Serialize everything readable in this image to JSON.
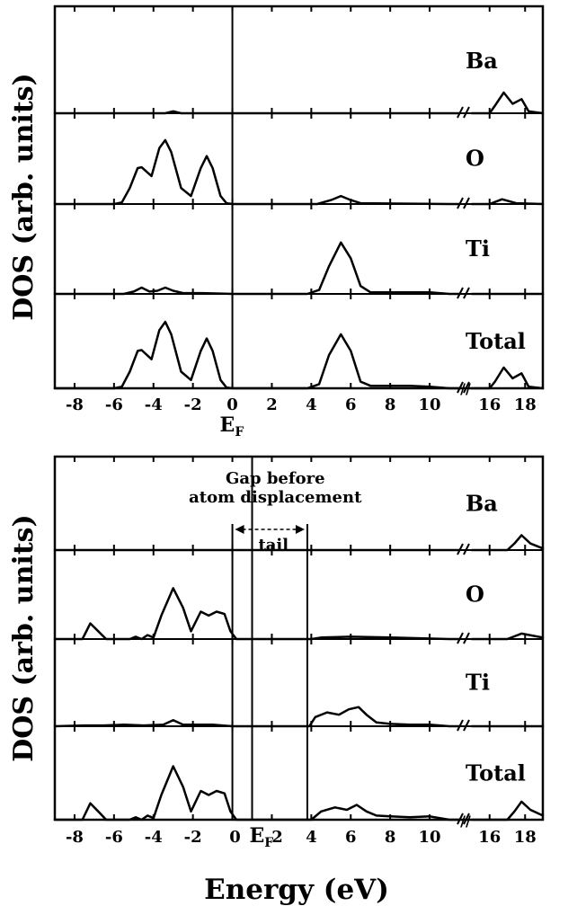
{
  "chart_data": [
    {
      "type": "line",
      "ylabel": "DOS (arb. units)",
      "xlabel": "",
      "fermi_label": "E",
      "fermi_sub": "F",
      "fermi_energy": 0,
      "x_ticks": [
        -8,
        -6,
        -4,
        -2,
        0,
        2,
        4,
        6,
        8,
        10,
        16,
        18
      ],
      "x_range_left": [
        -9,
        11.5
      ],
      "x_range_right": [
        15,
        19
      ],
      "axis_break": "//",
      "panels": [
        {
          "name": "Ba",
          "peak": 0.35,
          "points": [
            [
              -9,
              0
            ],
            [
              -3.4,
              0
            ],
            [
              -3,
              0.02
            ],
            [
              -2.6,
              0
            ],
            [
              16,
              0
            ],
            [
              16.3,
              0.08
            ],
            [
              16.8,
              0.22
            ],
            [
              17.3,
              0.1
            ],
            [
              17.8,
              0.15
            ],
            [
              18.2,
              0.02
            ],
            [
              19,
              0
            ]
          ]
        },
        {
          "name": "O",
          "peak": 1.0,
          "points": [
            [
              -9,
              0
            ],
            [
              -6,
              0
            ],
            [
              -5.6,
              0.02
            ],
            [
              -5.2,
              0.2
            ],
            [
              -4.8,
              0.45
            ],
            [
              -4.6,
              0.46
            ],
            [
              -4.1,
              0.35
            ],
            [
              -3.7,
              0.7
            ],
            [
              -3.4,
              0.8
            ],
            [
              -3.1,
              0.65
            ],
            [
              -2.6,
              0.2
            ],
            [
              -2.1,
              0.1
            ],
            [
              -1.6,
              0.45
            ],
            [
              -1.3,
              0.6
            ],
            [
              -1,
              0.45
            ],
            [
              -0.6,
              0.1
            ],
            [
              -0.3,
              0.01
            ],
            [
              0,
              0
            ],
            [
              4.3,
              0
            ],
            [
              5,
              0.05
            ],
            [
              5.5,
              0.1
            ],
            [
              6,
              0.05
            ],
            [
              6.5,
              0.01
            ],
            [
              11,
              0
            ],
            [
              16,
              0
            ],
            [
              16.7,
              0.06
            ],
            [
              17.5,
              0.01
            ],
            [
              19,
              0
            ]
          ]
        },
        {
          "name": "Ti",
          "peak": 0.75,
          "points": [
            [
              -9,
              0
            ],
            [
              -5.5,
              0
            ],
            [
              -5,
              0.03
            ],
            [
              -4.6,
              0.08
            ],
            [
              -4.2,
              0.03
            ],
            [
              -3.8,
              0.04
            ],
            [
              -3.4,
              0.08
            ],
            [
              -3,
              0.04
            ],
            [
              -2.5,
              0.01
            ],
            [
              -1.5,
              0.01
            ],
            [
              0,
              0
            ],
            [
              3.8,
              0
            ],
            [
              4.4,
              0.05
            ],
            [
              4.9,
              0.35
            ],
            [
              5.5,
              0.65
            ],
            [
              6,
              0.45
            ],
            [
              6.5,
              0.1
            ],
            [
              7,
              0.02
            ],
            [
              9,
              0.02
            ],
            [
              10,
              0.02
            ],
            [
              11,
              0
            ],
            [
              19,
              0
            ]
          ]
        },
        {
          "name": "Total",
          "peak": 1.0,
          "points": [
            [
              -9,
              0
            ],
            [
              -6,
              0
            ],
            [
              -5.6,
              0.02
            ],
            [
              -5.2,
              0.2
            ],
            [
              -4.8,
              0.45
            ],
            [
              -4.6,
              0.46
            ],
            [
              -4.1,
              0.35
            ],
            [
              -3.7,
              0.7
            ],
            [
              -3.4,
              0.8
            ],
            [
              -3.1,
              0.65
            ],
            [
              -2.6,
              0.2
            ],
            [
              -2.1,
              0.1
            ],
            [
              -1.6,
              0.45
            ],
            [
              -1.3,
              0.6
            ],
            [
              -1,
              0.45
            ],
            [
              -0.6,
              0.1
            ],
            [
              -0.3,
              0.01
            ],
            [
              0,
              0
            ],
            [
              3.8,
              0
            ],
            [
              4.4,
              0.05
            ],
            [
              4.9,
              0.4
            ],
            [
              5.5,
              0.65
            ],
            [
              6,
              0.45
            ],
            [
              6.5,
              0.08
            ],
            [
              7,
              0.03
            ],
            [
              9,
              0.03
            ],
            [
              10,
              0.02
            ],
            [
              11,
              0
            ],
            [
              16,
              0
            ],
            [
              16.3,
              0.08
            ],
            [
              16.8,
              0.25
            ],
            [
              17.3,
              0.12
            ],
            [
              17.8,
              0.18
            ],
            [
              18.2,
              0.02
            ],
            [
              19,
              0
            ]
          ]
        }
      ]
    },
    {
      "type": "line",
      "ylabel": "DOS (arb. units)",
      "xlabel": "Energy (eV)",
      "fermi_label": "E",
      "fermi_sub": "F",
      "fermi_energy": 1.0,
      "x_ticks": [
        -8,
        -6,
        -4,
        -2,
        0,
        2,
        4,
        6,
        8,
        10,
        16,
        18
      ],
      "x_range_left": [
        -9,
        11.5
      ],
      "x_range_right": [
        15,
        19
      ],
      "axis_break": "//",
      "annotation": {
        "line1": "Gap before",
        "line2": "atom displacement",
        "tail": "tail"
      },
      "gap_range": [
        0,
        3.8
      ],
      "panels": [
        {
          "name": "Ba",
          "peak": 0.35,
          "points": [
            [
              -9,
              0
            ],
            [
              17,
              0
            ],
            [
              17.4,
              0.08
            ],
            [
              17.8,
              0.18
            ],
            [
              18.3,
              0.08
            ],
            [
              19,
              0.02
            ]
          ]
        },
        {
          "name": "O",
          "peak": 1.0,
          "points": [
            [
              -9,
              0
            ],
            [
              -7.6,
              0
            ],
            [
              -7.2,
              0.2
            ],
            [
              -6.8,
              0.1
            ],
            [
              -6.4,
              0
            ],
            [
              -5.2,
              0
            ],
            [
              -4.9,
              0.03
            ],
            [
              -4.6,
              0
            ],
            [
              -4.3,
              0.05
            ],
            [
              -4,
              0.02
            ],
            [
              -3.6,
              0.3
            ],
            [
              -3,
              0.65
            ],
            [
              -2.5,
              0.4
            ],
            [
              -2.1,
              0.1
            ],
            [
              -1.6,
              0.35
            ],
            [
              -1.2,
              0.3
            ],
            [
              -0.8,
              0.35
            ],
            [
              -0.4,
              0.32
            ],
            [
              -0.1,
              0.1
            ],
            [
              0.2,
              0
            ],
            [
              4,
              0
            ],
            [
              4.5,
              0.02
            ],
            [
              6,
              0.03
            ],
            [
              8,
              0.02
            ],
            [
              11,
              0
            ],
            [
              17,
              0
            ],
            [
              17.8,
              0.07
            ],
            [
              18.5,
              0.04
            ],
            [
              19,
              0.02
            ]
          ]
        },
        {
          "name": "Ti",
          "peak": 0.75,
          "points": [
            [
              -9,
              0
            ],
            [
              -7.5,
              0.01
            ],
            [
              -6.5,
              0.01
            ],
            [
              -5.5,
              0.02
            ],
            [
              -4.5,
              0.01
            ],
            [
              -3.5,
              0.02
            ],
            [
              -3,
              0.08
            ],
            [
              -2.5,
              0.02
            ],
            [
              -1,
              0.02
            ],
            [
              0,
              0
            ],
            [
              3.9,
              0
            ],
            [
              4.2,
              0.12
            ],
            [
              4.8,
              0.18
            ],
            [
              5.4,
              0.15
            ],
            [
              5.9,
              0.22
            ],
            [
              6.4,
              0.25
            ],
            [
              6.8,
              0.15
            ],
            [
              7.3,
              0.05
            ],
            [
              8,
              0.03
            ],
            [
              9,
              0.02
            ],
            [
              10,
              0.02
            ],
            [
              11,
              0
            ],
            [
              19,
              0
            ]
          ]
        },
        {
          "name": "Total",
          "peak": 1.0,
          "points": [
            [
              -9,
              0
            ],
            [
              -7.6,
              0
            ],
            [
              -7.2,
              0.2
            ],
            [
              -6.8,
              0.1
            ],
            [
              -6.4,
              0
            ],
            [
              -5.2,
              0
            ],
            [
              -4.9,
              0.03
            ],
            [
              -4.6,
              0
            ],
            [
              -4.3,
              0.05
            ],
            [
              -4,
              0.02
            ],
            [
              -3.6,
              0.3
            ],
            [
              -3,
              0.65
            ],
            [
              -2.5,
              0.4
            ],
            [
              -2.1,
              0.1
            ],
            [
              -1.6,
              0.35
            ],
            [
              -1.2,
              0.3
            ],
            [
              -0.8,
              0.35
            ],
            [
              -0.4,
              0.32
            ],
            [
              -0.1,
              0.1
            ],
            [
              0.2,
              0
            ],
            [
              4,
              0
            ],
            [
              4.5,
              0.1
            ],
            [
              5.2,
              0.15
            ],
            [
              5.8,
              0.12
            ],
            [
              6.3,
              0.18
            ],
            [
              6.8,
              0.1
            ],
            [
              7.3,
              0.05
            ],
            [
              8,
              0.04
            ],
            [
              9,
              0.03
            ],
            [
              10,
              0.04
            ],
            [
              11,
              0
            ],
            [
              17,
              0
            ],
            [
              17.4,
              0.1
            ],
            [
              17.8,
              0.22
            ],
            [
              18.3,
              0.12
            ],
            [
              19,
              0.05
            ]
          ]
        }
      ]
    }
  ]
}
